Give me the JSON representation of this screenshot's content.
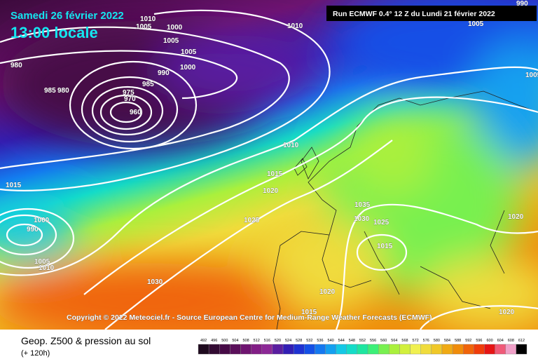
{
  "header": {
    "date": "Samedi 26 février 2022",
    "time": "13:00 locale",
    "run": "Run ECMWF 0.4° 12 Z du Lundi 21 février 2022"
  },
  "copyright": "Copyright © 2022 Meteociel.fr - Source European Centre for Medium-Range Weather Forecasts (ECMWF)",
  "isobar_labels": [
    1010,
    1005,
    1000,
    1005,
    1005,
    1000,
    990,
    985,
    980,
    985,
    980,
    975,
    970,
    960,
    1010,
    1005,
    990,
    1010,
    1015,
    1020,
    1015,
    1000,
    990,
    1025,
    1035,
    1030,
    1025,
    1015,
    1005,
    1010,
    1030,
    1020,
    1020,
    1020,
    1005,
    1015
  ],
  "legend": {
    "title": "Geop. Z500 & pression au sol",
    "subtitle": "(+ 120h)",
    "scale": [
      {
        "value": 492,
        "color": "#1e0a1e"
      },
      {
        "value": 496,
        "color": "#320a32"
      },
      {
        "value": 500,
        "color": "#460a46"
      },
      {
        "value": 504,
        "color": "#5a0f5a"
      },
      {
        "value": 508,
        "color": "#6e1470"
      },
      {
        "value": 512,
        "color": "#821e86"
      },
      {
        "value": 516,
        "color": "#8c2896"
      },
      {
        "value": 520,
        "color": "#5a1ea0"
      },
      {
        "value": 524,
        "color": "#321eb4"
      },
      {
        "value": 528,
        "color": "#1e32d2"
      },
      {
        "value": 532,
        "color": "#1450e6"
      },
      {
        "value": 536,
        "color": "#1478f0"
      },
      {
        "value": 540,
        "color": "#14a0f0"
      },
      {
        "value": 544,
        "color": "#14c8e6"
      },
      {
        "value": 548,
        "color": "#14dcc8"
      },
      {
        "value": 552,
        "color": "#1ee6a0"
      },
      {
        "value": 556,
        "color": "#3cf078"
      },
      {
        "value": 560,
        "color": "#78f050"
      },
      {
        "value": 564,
        "color": "#aaf03c"
      },
      {
        "value": 568,
        "color": "#d2f03c"
      },
      {
        "value": 572,
        "color": "#f0f050"
      },
      {
        "value": 576,
        "color": "#f0dc3c"
      },
      {
        "value": 580,
        "color": "#f0c828"
      },
      {
        "value": 584,
        "color": "#f0aa14"
      },
      {
        "value": 588,
        "color": "#f08c0a"
      },
      {
        "value": 592,
        "color": "#f0640a"
      },
      {
        "value": 596,
        "color": "#f03c0a"
      },
      {
        "value": 600,
        "color": "#e61414"
      },
      {
        "value": 604,
        "color": "#f05a78"
      },
      {
        "value": 608,
        "color": "#f0a0c8"
      },
      {
        "value": 612,
        "color": "#000000"
      }
    ]
  }
}
